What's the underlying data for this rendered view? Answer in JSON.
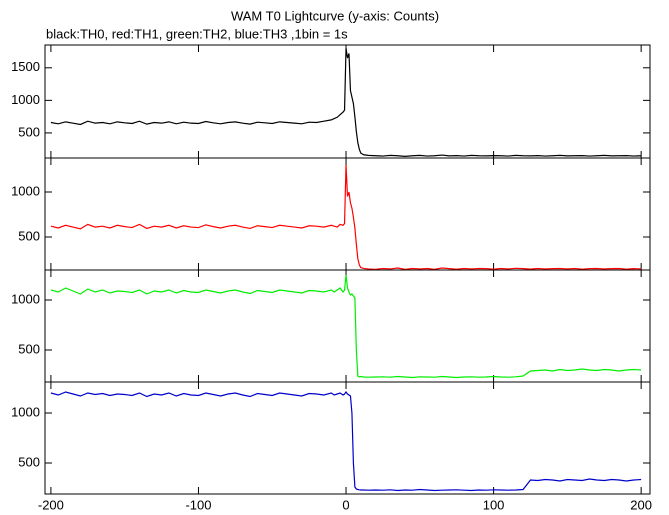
{
  "chart_data": {
    "type": "line",
    "title": "WAM T0 Lightcurve (y-axis: Counts)",
    "subtitle": "black:TH0, red:TH1, green:TH2, blue:TH3 ,1bin = 1s",
    "xlim": [
      -204,
      206
    ],
    "xticks": [
      -200,
      -100,
      0,
      100,
      200
    ],
    "x": [
      -200,
      -195,
      -190,
      -185,
      -180,
      -175,
      -170,
      -165,
      -160,
      -155,
      -150,
      -145,
      -140,
      -135,
      -130,
      -125,
      -120,
      -115,
      -110,
      -105,
      -100,
      -95,
      -90,
      -85,
      -80,
      -75,
      -70,
      -65,
      -60,
      -55,
      -50,
      -45,
      -40,
      -35,
      -30,
      -25,
      -20,
      -15,
      -10,
      -8,
      -6,
      -4,
      -2,
      -1,
      0,
      1,
      2,
      3,
      4,
      5,
      6,
      7,
      8,
      9,
      10,
      12,
      15,
      20,
      25,
      30,
      35,
      40,
      45,
      50,
      55,
      60,
      65,
      70,
      75,
      80,
      85,
      90,
      95,
      100,
      105,
      110,
      115,
      120,
      125,
      130,
      135,
      140,
      145,
      150,
      155,
      160,
      165,
      170,
      175,
      180,
      185,
      190,
      195,
      200
    ],
    "series": [
      {
        "color": "#000000",
        "ylim": [
          115,
          1850
        ],
        "yticks": [
          500,
          1000,
          1500
        ],
        "values": [
          660,
          640,
          670,
          650,
          630,
          680,
          650,
          660,
          640,
          670,
          655,
          645,
          680,
          635,
          660,
          650,
          670,
          640,
          665,
          650,
          645,
          675,
          655,
          640,
          660,
          670,
          650,
          635,
          665,
          655,
          645,
          670,
          660,
          650,
          640,
          665,
          660,
          680,
          700,
          720,
          740,
          780,
          820,
          850,
          1800,
          1650,
          1720,
          1150,
          1050,
          950,
          750,
          520,
          350,
          250,
          190,
          165,
          155,
          150,
          145,
          155,
          150,
          140,
          150,
          155,
          145,
          150,
          160,
          148,
          152,
          145,
          155,
          150,
          148,
          152,
          150,
          145,
          155,
          150,
          148,
          152,
          145,
          150,
          155,
          148,
          150,
          152,
          145,
          150,
          155,
          148,
          150,
          152,
          145,
          150
        ]
      },
      {
        "color": "#ff0000",
        "ylim": [
          133,
          1378
        ],
        "yticks": [
          500,
          1000
        ],
        "values": [
          620,
          600,
          630,
          610,
          590,
          640,
          610,
          620,
          600,
          630,
          615,
          605,
          640,
          595,
          620,
          610,
          630,
          600,
          625,
          610,
          605,
          635,
          615,
          600,
          620,
          630,
          610,
          595,
          625,
          615,
          605,
          630,
          620,
          610,
          600,
          625,
          620,
          610,
          630,
          620,
          610,
          640,
          630,
          650,
          1300,
          950,
          1000,
          880,
          820,
          720,
          600,
          420,
          260,
          190,
          160,
          150,
          145,
          140,
          150,
          145,
          155,
          140,
          150,
          145,
          150,
          140,
          155,
          148,
          142,
          150,
          145,
          150,
          148,
          142,
          150,
          145,
          152,
          148,
          143,
          150,
          145,
          148,
          150,
          145,
          150,
          142,
          148,
          150,
          145,
          148,
          150,
          142,
          148,
          145
        ]
      },
      {
        "color": "#00ee00",
        "ylim": [
          180,
          1300
        ],
        "yticks": [
          500,
          1000
        ],
        "values": [
          1100,
          1080,
          1120,
          1090,
          1060,
          1110,
          1080,
          1100,
          1070,
          1090,
          1085,
          1075,
          1100,
          1060,
          1090,
          1080,
          1100,
          1070,
          1095,
          1080,
          1075,
          1100,
          1085,
          1070,
          1090,
          1100,
          1080,
          1065,
          1095,
          1085,
          1075,
          1100,
          1090,
          1080,
          1070,
          1095,
          1090,
          1080,
          1100,
          1080,
          1100,
          1120,
          1080,
          1100,
          1250,
          1120,
          1080,
          1050,
          1060,
          1040,
          1020,
          500,
          240,
          230,
          235,
          230,
          228,
          230,
          232,
          228,
          235,
          230,
          225,
          232,
          230,
          228,
          235,
          230,
          225,
          230,
          232,
          228,
          230,
          235,
          230,
          228,
          232,
          240,
          290,
          295,
          300,
          290,
          305,
          295,
          300,
          310,
          300,
          295,
          305,
          300,
          290,
          300,
          305,
          300
        ]
      },
      {
        "color": "#0000cc",
        "ylim": [
          190,
          1310
        ],
        "yticks": [
          500,
          1000
        ],
        "values": [
          1200,
          1180,
          1210,
          1190,
          1170,
          1200,
          1185,
          1195,
          1175,
          1190,
          1185,
          1175,
          1200,
          1165,
          1190,
          1180,
          1200,
          1170,
          1195,
          1180,
          1175,
          1200,
          1185,
          1170,
          1190,
          1200,
          1180,
          1165,
          1195,
          1185,
          1175,
          1200,
          1190,
          1180,
          1170,
          1195,
          1190,
          1180,
          1200,
          1180,
          1190,
          1200,
          1180,
          1190,
          1210,
          1190,
          1180,
          1170,
          1000,
          500,
          260,
          240,
          235,
          232,
          230,
          230,
          228,
          230,
          228,
          232,
          225,
          230,
          228,
          235,
          230,
          225,
          228,
          230,
          232,
          228,
          225,
          230,
          228,
          232,
          230,
          228,
          230,
          235,
          330,
          325,
          335,
          330,
          320,
          335,
          330,
          325,
          340,
          330,
          325,
          335,
          330,
          320,
          330,
          335
        ]
      }
    ]
  }
}
